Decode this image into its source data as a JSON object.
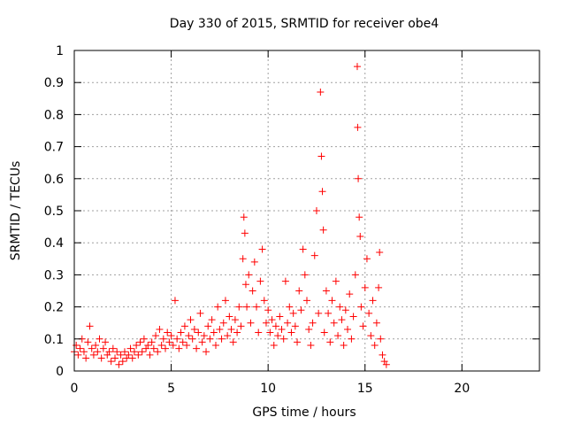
{
  "chart_data": {
    "type": "scatter",
    "title": "Day 330 of 2015, SRMTID for receiver obe4",
    "xlabel": "GPS time / hours",
    "ylabel": "SRMTID / TECUs",
    "xlim": [
      0,
      24
    ],
    "ylim": [
      0,
      1
    ],
    "xticks": [
      0,
      5,
      10,
      15,
      20
    ],
    "xtick_labels": [
      "0",
      "5",
      "10",
      "15",
      "20"
    ],
    "yticks": [
      0,
      0.1,
      0.2,
      0.3,
      0.4,
      0.5,
      0.6,
      0.7,
      0.8,
      0.9,
      1
    ],
    "ytick_labels": [
      "0",
      "0.1",
      "0.2",
      "0.3",
      "0.4",
      "0.5",
      "0.6",
      "0.7",
      "0.8",
      "0.9",
      "1"
    ],
    "grid": true,
    "marker": "+",
    "marker_color": "#ff0000",
    "series": [
      {
        "name": "obe4",
        "points": [
          [
            0.0,
            0.06
          ],
          [
            0.1,
            0.08
          ],
          [
            0.2,
            0.05
          ],
          [
            0.3,
            0.07
          ],
          [
            0.4,
            0.1
          ],
          [
            0.5,
            0.06
          ],
          [
            0.6,
            0.04
          ],
          [
            0.7,
            0.09
          ],
          [
            0.8,
            0.14
          ],
          [
            0.9,
            0.07
          ],
          [
            1.0,
            0.05
          ],
          [
            1.1,
            0.08
          ],
          [
            1.2,
            0.06
          ],
          [
            1.3,
            0.1
          ],
          [
            1.4,
            0.04
          ],
          [
            1.5,
            0.07
          ],
          [
            1.6,
            0.09
          ],
          [
            1.7,
            0.05
          ],
          [
            1.8,
            0.06
          ],
          [
            1.9,
            0.03
          ],
          [
            2.0,
            0.07
          ],
          [
            2.1,
            0.04
          ],
          [
            2.2,
            0.06
          ],
          [
            2.3,
            0.02
          ],
          [
            2.4,
            0.05
          ],
          [
            2.5,
            0.03
          ],
          [
            2.6,
            0.06
          ],
          [
            2.7,
            0.04
          ],
          [
            2.8,
            0.05
          ],
          [
            2.9,
            0.07
          ],
          [
            3.0,
            0.04
          ],
          [
            3.1,
            0.06
          ],
          [
            3.2,
            0.08
          ],
          [
            3.3,
            0.05
          ],
          [
            3.4,
            0.09
          ],
          [
            3.5,
            0.06
          ],
          [
            3.6,
            0.1
          ],
          [
            3.7,
            0.07
          ],
          [
            3.8,
            0.08
          ],
          [
            3.9,
            0.05
          ],
          [
            4.0,
            0.09
          ],
          [
            4.1,
            0.07
          ],
          [
            4.2,
            0.11
          ],
          [
            4.3,
            0.06
          ],
          [
            4.4,
            0.13
          ],
          [
            4.5,
            0.08
          ],
          [
            4.6,
            0.1
          ],
          [
            4.7,
            0.07
          ],
          [
            4.8,
            0.12
          ],
          [
            4.9,
            0.09
          ],
          [
            5.0,
            0.11
          ],
          [
            5.1,
            0.08
          ],
          [
            5.2,
            0.22
          ],
          [
            5.3,
            0.1
          ],
          [
            5.4,
            0.07
          ],
          [
            5.5,
            0.12
          ],
          [
            5.6,
            0.09
          ],
          [
            5.7,
            0.14
          ],
          [
            5.8,
            0.08
          ],
          [
            5.9,
            0.11
          ],
          [
            6.0,
            0.16
          ],
          [
            6.1,
            0.1
          ],
          [
            6.2,
            0.13
          ],
          [
            6.3,
            0.07
          ],
          [
            6.4,
            0.12
          ],
          [
            6.5,
            0.18
          ],
          [
            6.6,
            0.09
          ],
          [
            6.7,
            0.11
          ],
          [
            6.8,
            0.06
          ],
          [
            6.9,
            0.14
          ],
          [
            7.0,
            0.1
          ],
          [
            7.1,
            0.16
          ],
          [
            7.2,
            0.12
          ],
          [
            7.3,
            0.08
          ],
          [
            7.4,
            0.2
          ],
          [
            7.5,
            0.13
          ],
          [
            7.6,
            0.1
          ],
          [
            7.7,
            0.15
          ],
          [
            7.8,
            0.22
          ],
          [
            7.9,
            0.11
          ],
          [
            8.0,
            0.17
          ],
          [
            8.1,
            0.13
          ],
          [
            8.2,
            0.09
          ],
          [
            8.3,
            0.16
          ],
          [
            8.4,
            0.12
          ],
          [
            8.5,
            0.2
          ],
          [
            8.6,
            0.14
          ],
          [
            8.7,
            0.35
          ],
          [
            8.75,
            0.48
          ],
          [
            8.8,
            0.43
          ],
          [
            8.85,
            0.27
          ],
          [
            8.9,
            0.2
          ],
          [
            9.0,
            0.3
          ],
          [
            9.1,
            0.15
          ],
          [
            9.2,
            0.25
          ],
          [
            9.3,
            0.34
          ],
          [
            9.4,
            0.2
          ],
          [
            9.5,
            0.12
          ],
          [
            9.6,
            0.28
          ],
          [
            9.7,
            0.38
          ],
          [
            9.8,
            0.22
          ],
          [
            9.9,
            0.15
          ],
          [
            10.0,
            0.19
          ],
          [
            10.1,
            0.12
          ],
          [
            10.2,
            0.16
          ],
          [
            10.3,
            0.08
          ],
          [
            10.4,
            0.14
          ],
          [
            10.5,
            0.11
          ],
          [
            10.6,
            0.17
          ],
          [
            10.7,
            0.13
          ],
          [
            10.8,
            0.1
          ],
          [
            10.9,
            0.28
          ],
          [
            11.0,
            0.15
          ],
          [
            11.1,
            0.2
          ],
          [
            11.2,
            0.12
          ],
          [
            11.3,
            0.18
          ],
          [
            11.4,
            0.14
          ],
          [
            11.5,
            0.09
          ],
          [
            11.6,
            0.25
          ],
          [
            11.7,
            0.19
          ],
          [
            11.8,
            0.38
          ],
          [
            11.9,
            0.3
          ],
          [
            12.0,
            0.22
          ],
          [
            12.1,
            0.13
          ],
          [
            12.2,
            0.08
          ],
          [
            12.3,
            0.15
          ],
          [
            12.4,
            0.36
          ],
          [
            12.5,
            0.5
          ],
          [
            12.6,
            0.18
          ],
          [
            12.7,
            0.87
          ],
          [
            12.75,
            0.67
          ],
          [
            12.8,
            0.56
          ],
          [
            12.85,
            0.44
          ],
          [
            12.9,
            0.12
          ],
          [
            13.0,
            0.25
          ],
          [
            13.1,
            0.18
          ],
          [
            13.2,
            0.09
          ],
          [
            13.3,
            0.22
          ],
          [
            13.4,
            0.15
          ],
          [
            13.5,
            0.28
          ],
          [
            13.6,
            0.11
          ],
          [
            13.7,
            0.2
          ],
          [
            13.8,
            0.16
          ],
          [
            13.9,
            0.08
          ],
          [
            14.0,
            0.19
          ],
          [
            14.1,
            0.13
          ],
          [
            14.2,
            0.24
          ],
          [
            14.3,
            0.1
          ],
          [
            14.4,
            0.17
          ],
          [
            14.5,
            0.3
          ],
          [
            14.6,
            0.95
          ],
          [
            14.62,
            0.76
          ],
          [
            14.65,
            0.6
          ],
          [
            14.7,
            0.48
          ],
          [
            14.75,
            0.42
          ],
          [
            14.8,
            0.2
          ],
          [
            14.9,
            0.14
          ],
          [
            15.0,
            0.26
          ],
          [
            15.1,
            0.35
          ],
          [
            15.2,
            0.18
          ],
          [
            15.3,
            0.11
          ],
          [
            15.4,
            0.22
          ],
          [
            15.5,
            0.08
          ],
          [
            15.6,
            0.15
          ],
          [
            15.7,
            0.26
          ],
          [
            15.75,
            0.37
          ],
          [
            15.8,
            0.1
          ],
          [
            15.9,
            0.05
          ],
          [
            16.0,
            0.03
          ],
          [
            16.1,
            0.02
          ]
        ]
      }
    ]
  }
}
